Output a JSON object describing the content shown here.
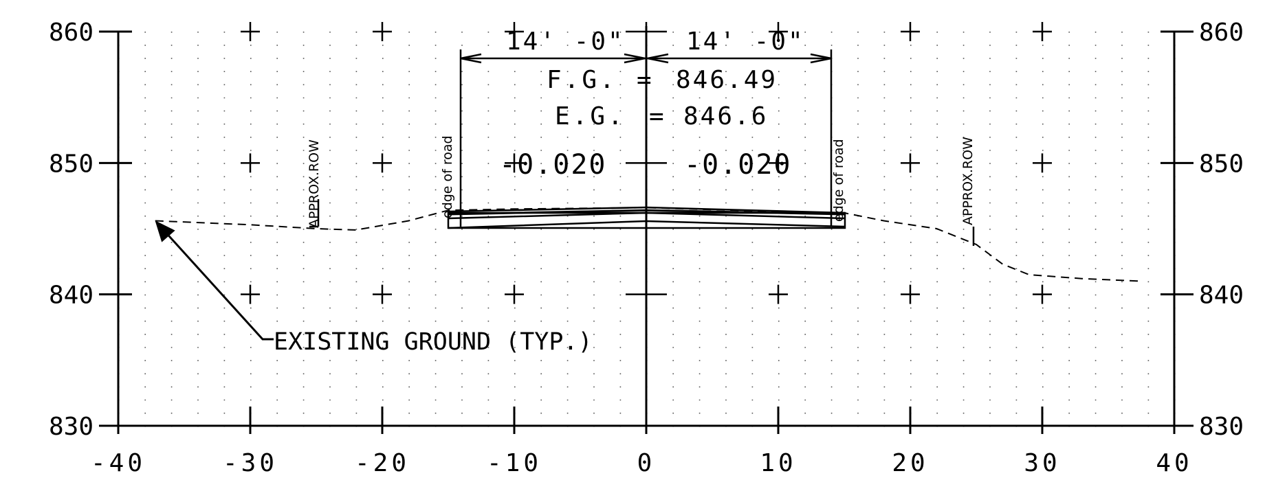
{
  "chart_data": {
    "type": "line",
    "xlim": [
      -40,
      40
    ],
    "ylim": [
      830,
      860
    ],
    "x_ticks": [
      -40,
      -30,
      -20,
      -10,
      0,
      10,
      20,
      30,
      40
    ],
    "y_ticks": [
      830,
      840,
      850,
      860
    ],
    "x_tick_labels": [
      "-40",
      "-30",
      "-20",
      "-10",
      "0",
      "10",
      "20",
      "30",
      "40"
    ],
    "y_tick_labels": [
      "830",
      "840",
      "850",
      "860"
    ],
    "grid": "dotted",
    "series": [
      {
        "name": "",
        "values": [
          [
            -37.2,
            845.6
          ],
          [
            -30,
            845.3
          ],
          [
            -25,
            845.0
          ],
          [
            -22,
            844.9
          ],
          [
            -18,
            845.6
          ],
          [
            -15,
            846.4
          ],
          [
            -10,
            846.5
          ],
          [
            0,
            846.6
          ],
          [
            10,
            846.3
          ],
          [
            15,
            846.2
          ],
          [
            18,
            845.6
          ],
          [
            22,
            845.0
          ],
          [
            25,
            843.8
          ],
          [
            27,
            842.3
          ],
          [
            29,
            841.5
          ],
          [
            33,
            841.2
          ],
          [
            37.5,
            841.0
          ]
        ]
      },
      {
        "name": "",
        "values": [
          [
            -15,
            846.1
          ],
          [
            0,
            846.4
          ],
          [
            15,
            846.1
          ]
        ]
      }
    ]
  },
  "annotations": {
    "dim_left": "14' -0\"",
    "dim_right": "14' -0\"",
    "fg_label": "F.G.",
    "fg_eq": "=",
    "fg_value": "846.49",
    "eg_label": "E.G.",
    "eg_eq": "=",
    "eg_value": "846.6",
    "slope_left": "-0.020",
    "slope_right": "-0.020",
    "edge_left": "edge of road",
    "edge_right": "edge of road",
    "row_left": "APPROX.ROW",
    "row_right": "APPROX.ROW",
    "existing_ground": "EXISTING GROUND (TYP.)"
  }
}
